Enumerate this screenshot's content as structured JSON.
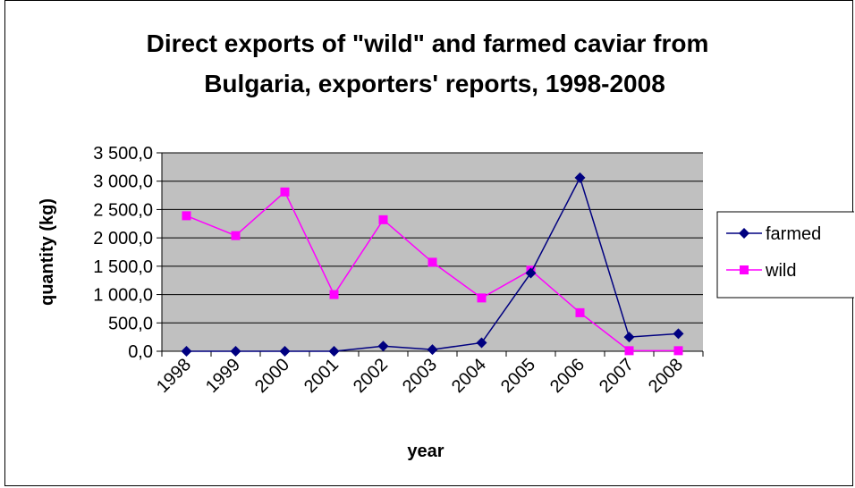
{
  "chart_data": {
    "type": "line",
    "title_lines": [
      "Direct exports of \"wild\" and farmed caviar from",
      "Bulgaria, exporters' reports, 1998-2008"
    ],
    "xlabel": "year",
    "ylabel": "quantity (kg)",
    "categories": [
      "1998",
      "1999",
      "2000",
      "2001",
      "2002",
      "2003",
      "2004",
      "2005",
      "2006",
      "2007",
      "2008"
    ],
    "ylim": [
      0,
      3500
    ],
    "yticks": [
      0,
      500,
      1000,
      1500,
      2000,
      2500,
      3000,
      3500
    ],
    "ytick_labels": [
      "0,0",
      "500,0",
      "1 000,0",
      "1 500,0",
      "2 000,0",
      "2 500,0",
      "3 000,0",
      "3 500,0"
    ],
    "grid": true,
    "legend_position": "right",
    "plot_background": "#C0C0C0",
    "series": [
      {
        "name": "farmed",
        "color": "#000080",
        "marker": "diamond",
        "values": [
          0,
          0,
          0,
          0,
          90,
          30,
          150,
          1380,
          3060,
          250,
          310
        ]
      },
      {
        "name": "wild",
        "color": "#FF00FF",
        "marker": "square",
        "values": [
          2390,
          2040,
          2810,
          1000,
          2320,
          1570,
          940,
          1430,
          680,
          10,
          10
        ]
      }
    ]
  }
}
